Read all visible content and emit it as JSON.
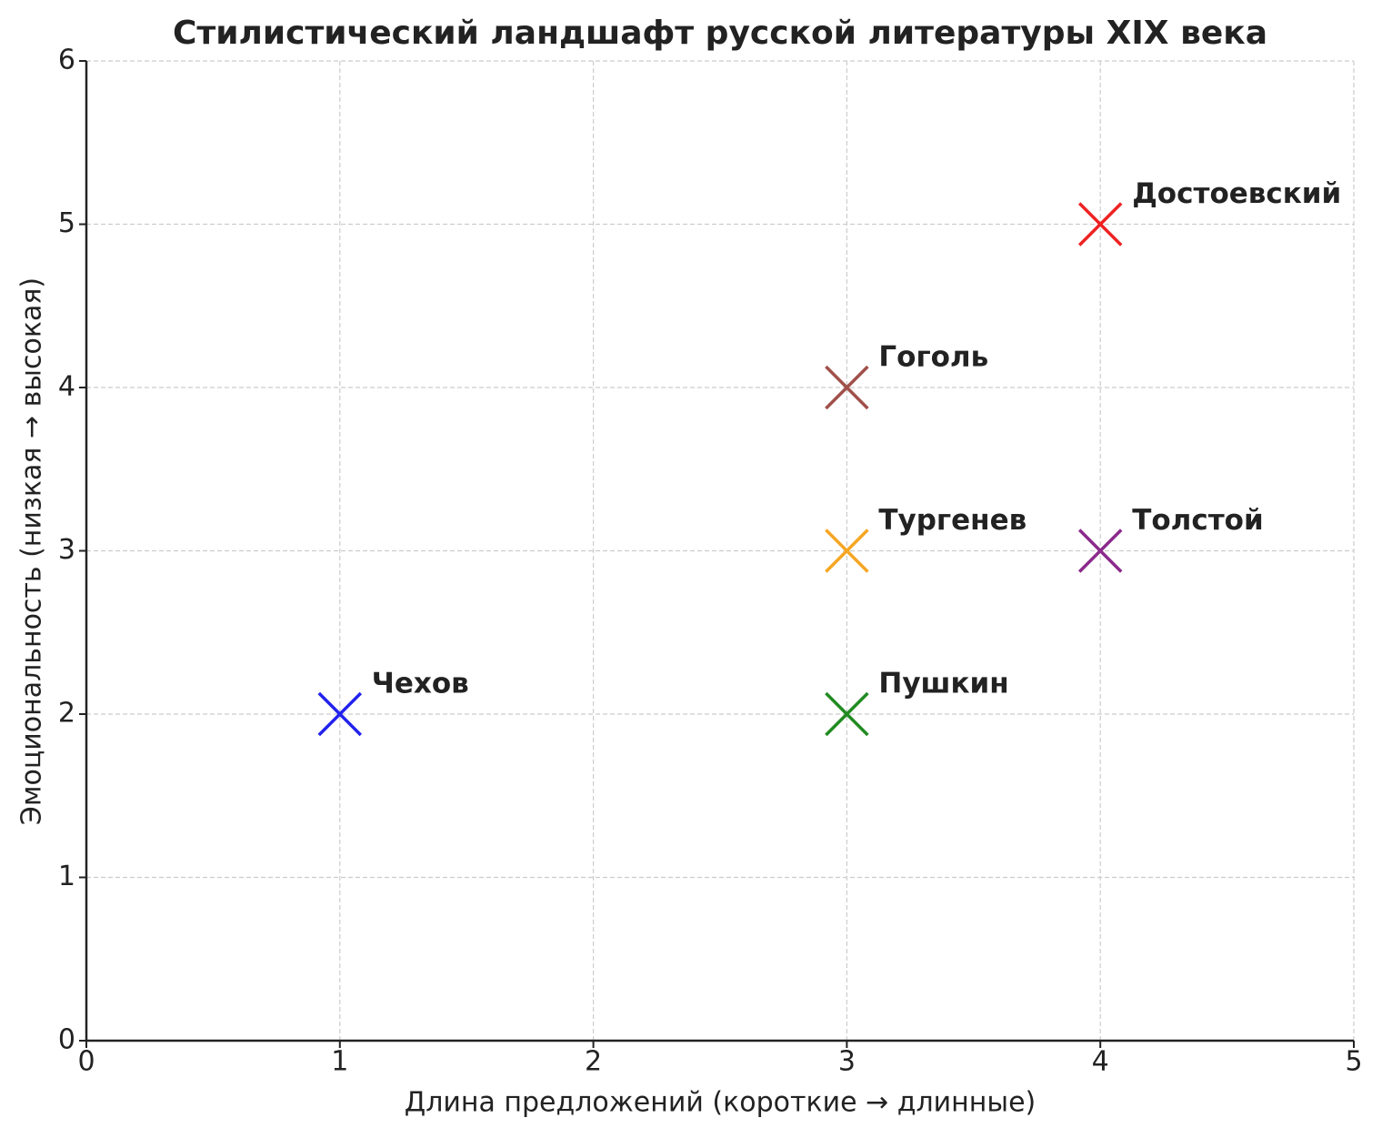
{
  "chart_data": {
    "type": "scatter",
    "title": "Стилистический ландшафт русской литературы XIX века",
    "x_label": "Длина предложений (короткие → длинные)",
    "y_label": "Эмоциональность (низкая → высокая)",
    "xlim": [
      0,
      5
    ],
    "ylim": [
      0,
      6
    ],
    "xticks": [
      0,
      1,
      2,
      3,
      4,
      5
    ],
    "yticks": [
      0,
      1,
      2,
      3,
      4,
      5,
      6
    ],
    "grid": true,
    "series": [
      {
        "name": "Пушкин",
        "color": "#228b22",
        "x": [
          3
        ],
        "y": [
          2
        ]
      },
      {
        "name": "Гоголь",
        "color": "#a0504a",
        "x": [
          3
        ],
        "y": [
          4
        ]
      },
      {
        "name": "Тургенев",
        "color": "#f5a623",
        "x": [
          3
        ],
        "y": [
          3
        ]
      },
      {
        "name": "Толстой",
        "color": "#8b2a8b",
        "x": [
          4
        ],
        "y": [
          3
        ]
      },
      {
        "name": "Достоевский",
        "color": "#ee2222",
        "x": [
          4
        ],
        "y": [
          5
        ]
      },
      {
        "name": "Чехов",
        "color": "#2222ee",
        "x": [
          1
        ],
        "y": [
          2
        ]
      }
    ]
  }
}
